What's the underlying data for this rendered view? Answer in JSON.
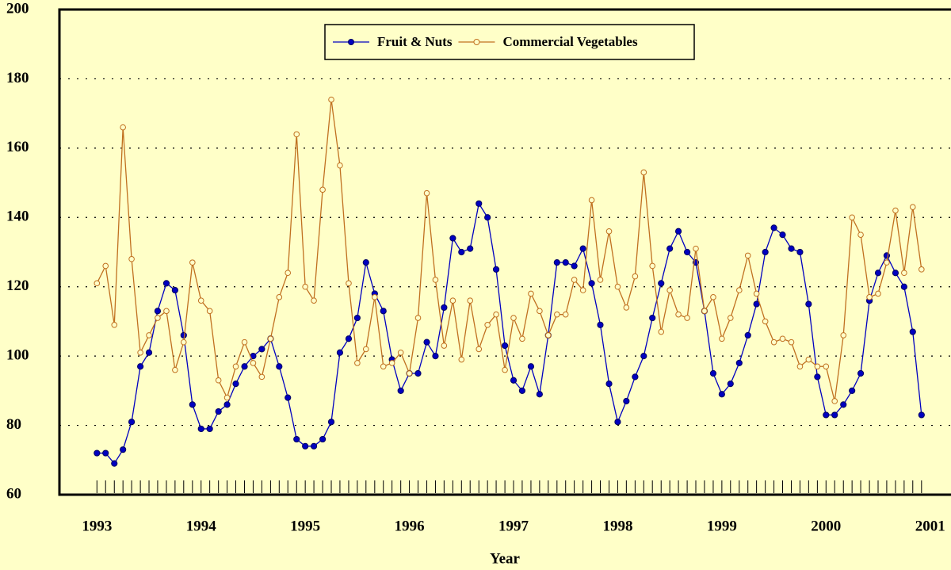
{
  "chart_data": {
    "type": "line",
    "x_label": "Year",
    "x": [
      1993,
      1993.083,
      1993.167,
      1993.25,
      1993.333,
      1993.417,
      1993.5,
      1993.583,
      1993.667,
      1993.75,
      1993.833,
      1993.917,
      1994,
      1994.083,
      1994.167,
      1994.25,
      1994.333,
      1994.417,
      1994.5,
      1994.583,
      1994.667,
      1994.75,
      1994.833,
      1994.917,
      1995,
      1995.083,
      1995.167,
      1995.25,
      1995.333,
      1995.417,
      1995.5,
      1995.583,
      1995.667,
      1995.75,
      1995.833,
      1995.917,
      1996,
      1996.083,
      1996.167,
      1996.25,
      1996.333,
      1996.417,
      1996.5,
      1996.583,
      1996.667,
      1996.75,
      1996.833,
      1996.917,
      1997,
      1997.083,
      1997.167,
      1997.25,
      1997.333,
      1997.417,
      1997.5,
      1997.583,
      1997.667,
      1997.75,
      1997.833,
      1997.917,
      1998,
      1998.083,
      1998.167,
      1998.25,
      1998.333,
      1998.417,
      1998.5,
      1998.583,
      1998.667,
      1998.75,
      1998.833,
      1998.917,
      1999,
      1999.083,
      1999.167,
      1999.25,
      1999.333,
      1999.417,
      1999.5,
      1999.583,
      1999.667,
      1999.75,
      1999.833,
      1999.917,
      2000,
      2000.083,
      2000.167,
      2000.25,
      2000.333,
      2000.417,
      2000.5,
      2000.583,
      2000.667,
      2000.75,
      2000.833,
      2000.917
    ],
    "series": [
      {
        "name": "Fruit & Nuts",
        "color": "#0000c0",
        "marker": "filled",
        "values": [
          72,
          72,
          69,
          73,
          81,
          97,
          101,
          113,
          121,
          119,
          106,
          86,
          79,
          79,
          84,
          86,
          92,
          97,
          100,
          102,
          105,
          97,
          88,
          76,
          74,
          74,
          76,
          81,
          101,
          105,
          111,
          127,
          118,
          113,
          99,
          90,
          95,
          95,
          104,
          100,
          114,
          134,
          130,
          131,
          144,
          140,
          125,
          103,
          93,
          90,
          97,
          89,
          106,
          127,
          127,
          126,
          131,
          121,
          109,
          92,
          81,
          87,
          94,
          100,
          111,
          121,
          131,
          136,
          130,
          127,
          113,
          95,
          89,
          92,
          98,
          106,
          115,
          130,
          137,
          135,
          131,
          130,
          115,
          94,
          83,
          83,
          86,
          90,
          95,
          116,
          124,
          129,
          124,
          120,
          107,
          83
        ]
      },
      {
        "name": "Commercial Vegetables",
        "color": "#c07020",
        "marker": "open",
        "values": [
          121,
          126,
          109,
          166,
          128,
          101,
          106,
          111,
          113,
          96,
          104,
          127,
          116,
          113,
          93,
          88,
          97,
          104,
          98,
          94,
          105,
          117,
          124,
          164,
          120,
          116,
          148,
          174,
          155,
          121,
          98,
          102,
          117,
          97,
          98,
          101,
          95,
          111,
          147,
          122,
          103,
          116,
          99,
          116,
          102,
          109,
          112,
          96,
          111,
          105,
          118,
          113,
          106,
          112,
          112,
          122,
          119,
          145,
          122,
          136,
          120,
          114,
          123,
          153,
          126,
          107,
          119,
          112,
          111,
          131,
          113,
          117,
          105,
          111,
          119,
          129,
          118,
          110,
          104,
          105,
          104,
          97,
          99,
          97,
          97,
          87,
          106,
          140,
          135,
          117,
          118,
          127,
          142,
          124,
          143,
          125
        ]
      }
    ],
    "xlim": [
      1992.64,
      2001.2
    ],
    "xticks": [
      1993,
      1994,
      1995,
      1996,
      1997,
      1998,
      1999,
      2000,
      2001
    ],
    "ylim": [
      60,
      200
    ],
    "yticks": [
      60,
      80,
      100,
      120,
      140,
      160,
      180,
      200
    ],
    "grid": true,
    "legend": "top"
  }
}
